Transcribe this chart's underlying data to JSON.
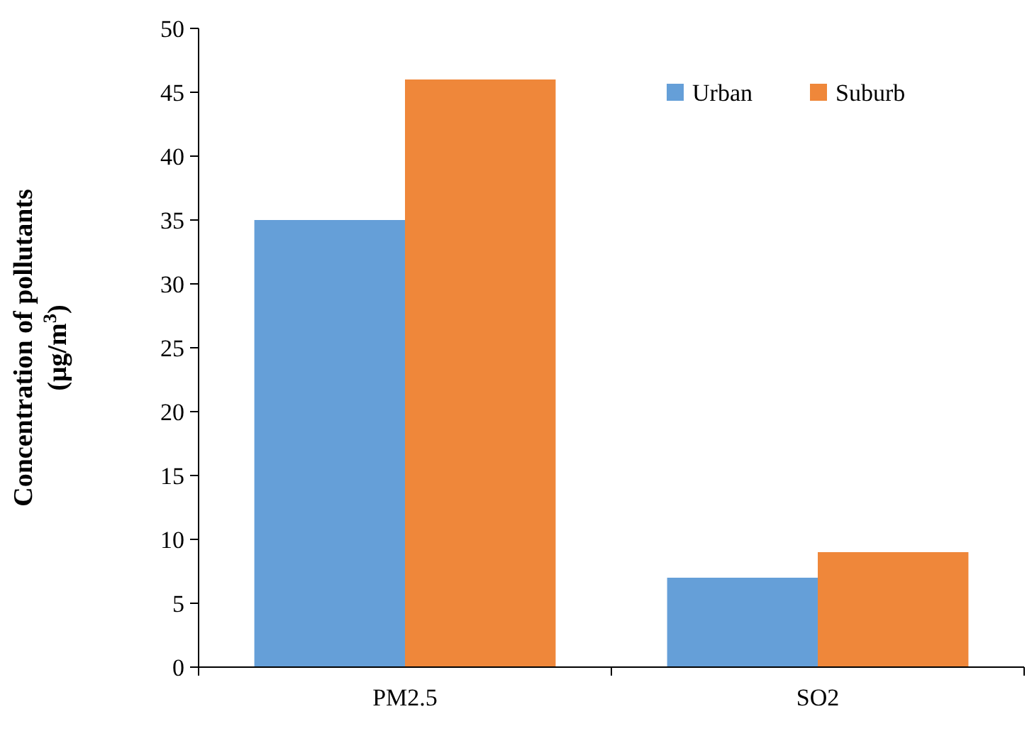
{
  "chart_data": {
    "type": "bar",
    "ylabel": "Concentration of pollutants\n(μg/m$^{3}$)",
    "categories": [
      "PM2.5",
      "SO2"
    ],
    "series": [
      {
        "name": "Urban",
        "color": "#659fd8",
        "values": [
          35,
          7
        ]
      },
      {
        "name": "Suburb",
        "color": "#ef873a",
        "values": [
          46,
          9
        ]
      }
    ],
    "ylim": [
      0,
      50
    ],
    "yticks": [
      0,
      5,
      10,
      15,
      20,
      25,
      30,
      35,
      40,
      45,
      50
    ],
    "grid": false,
    "legend": "top right"
  }
}
